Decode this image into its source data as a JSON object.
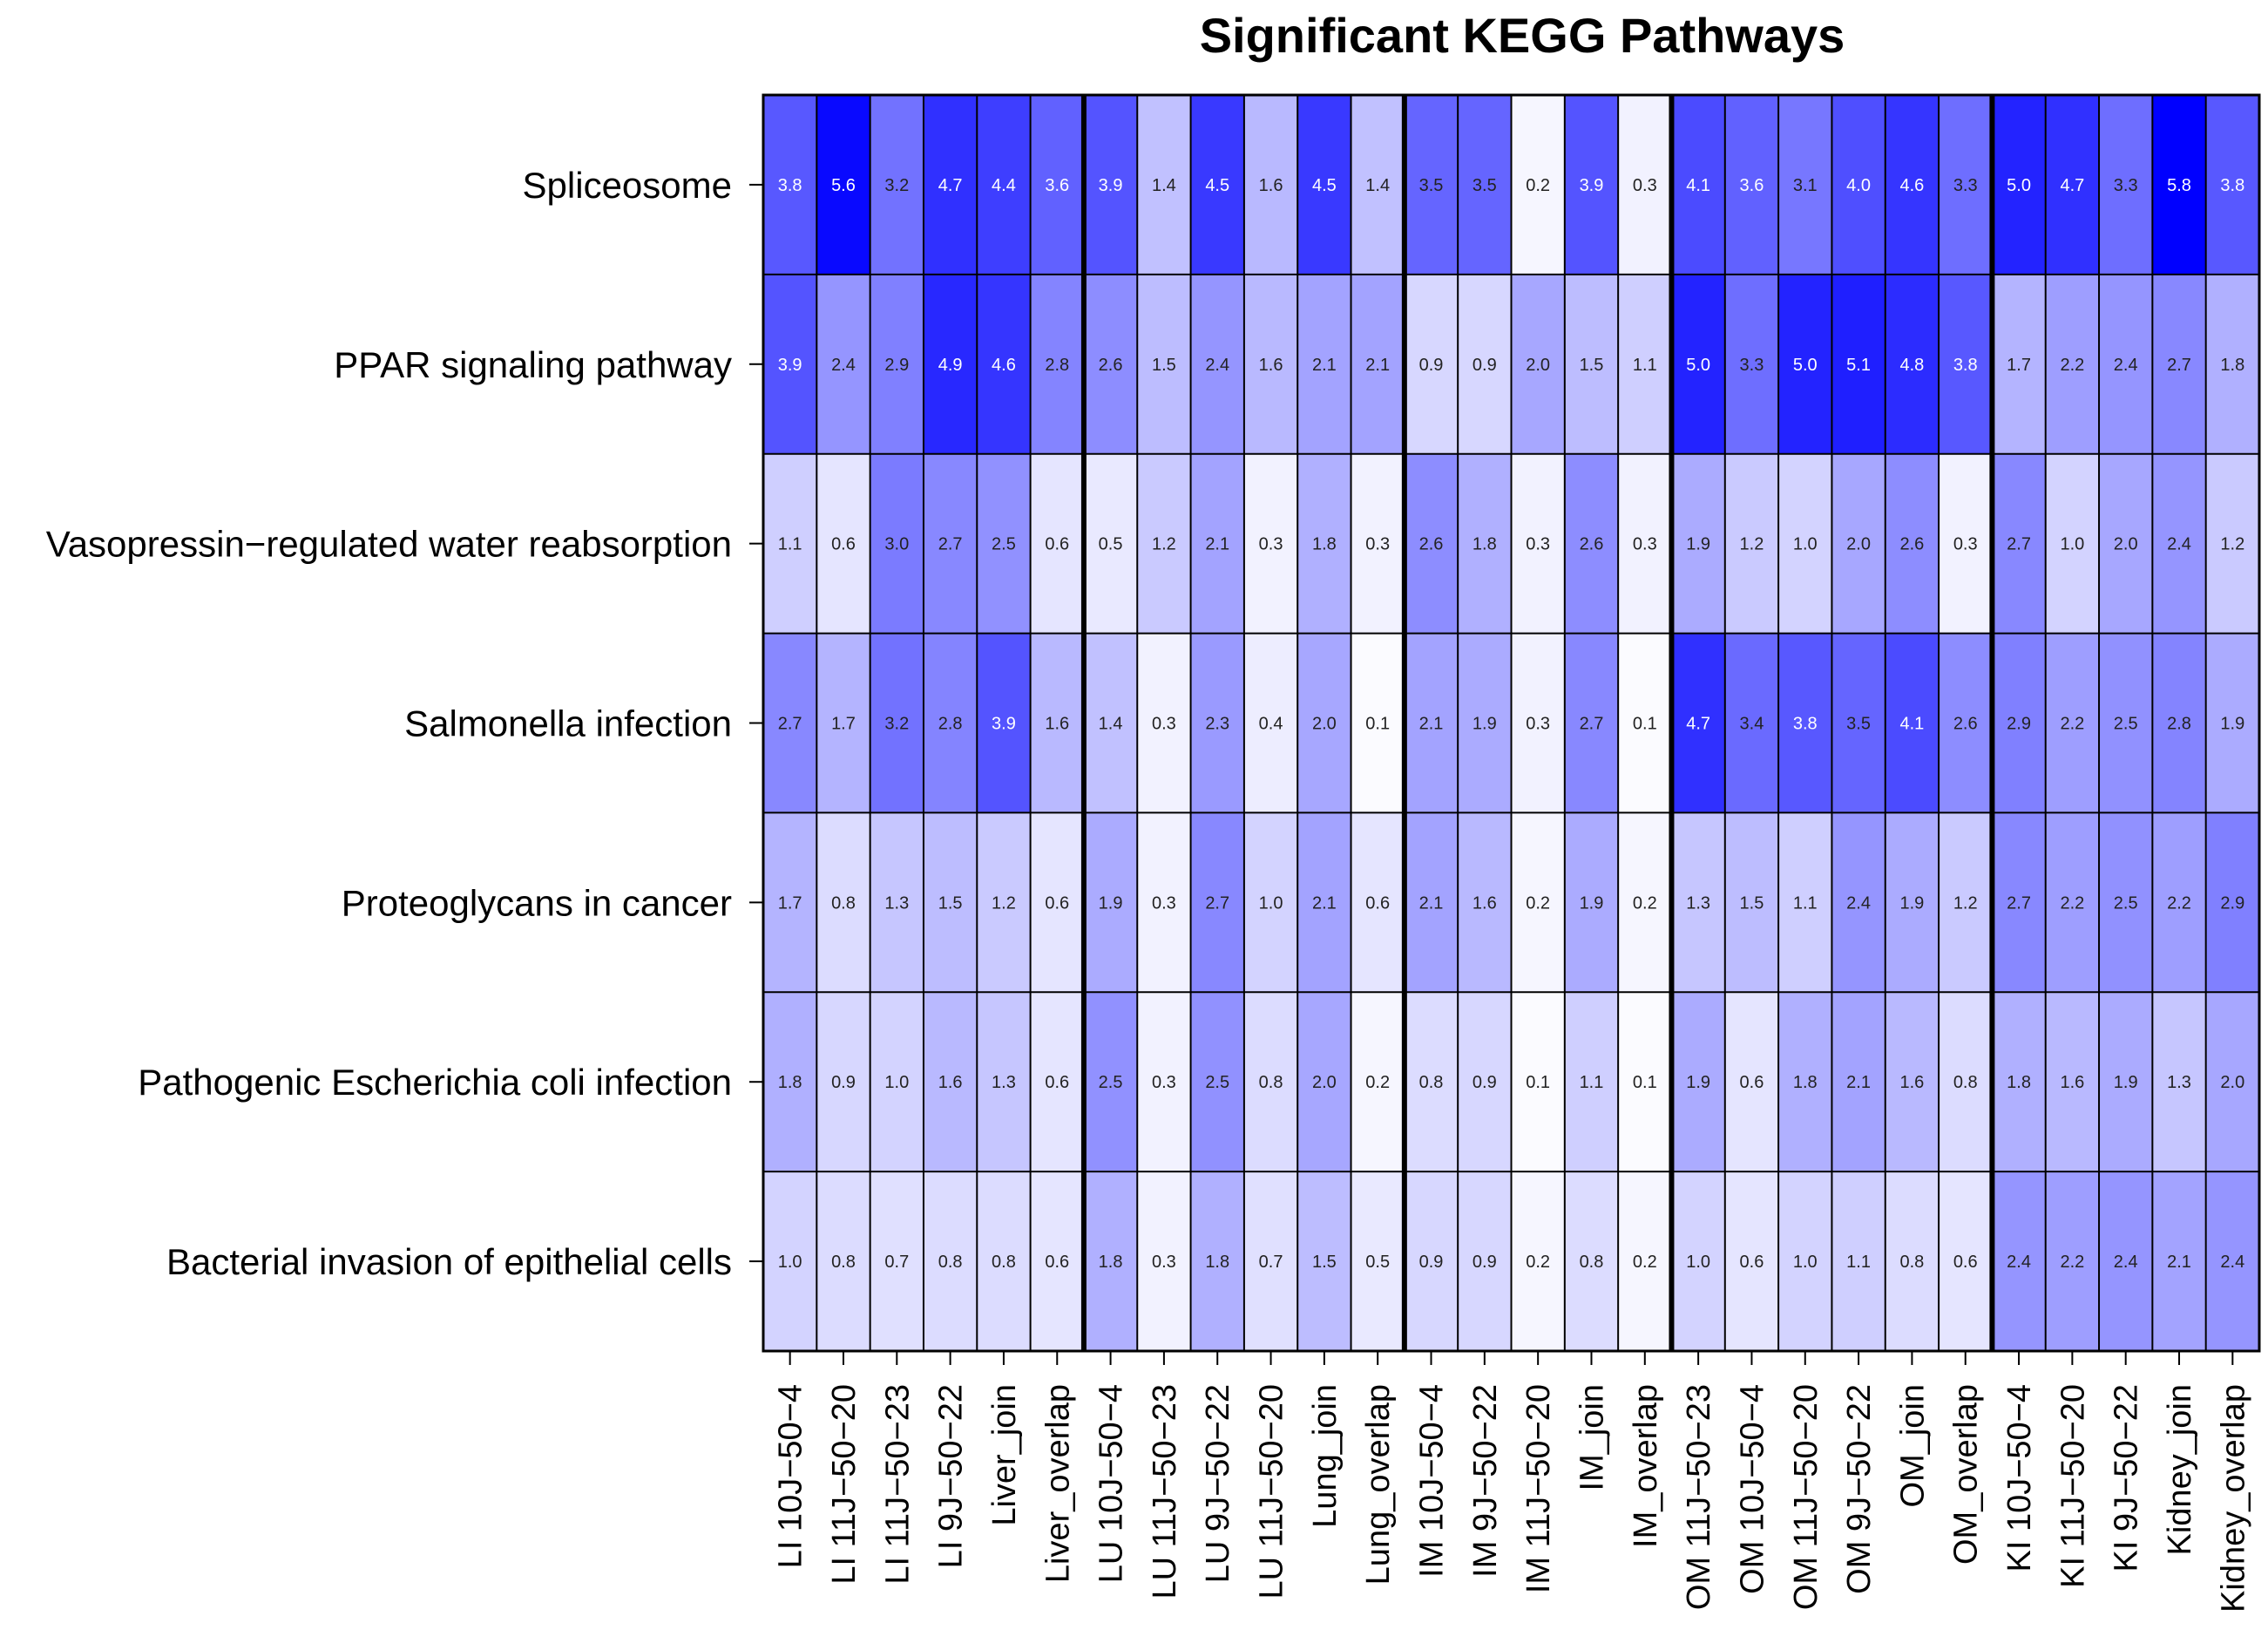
{
  "chart_data": {
    "type": "heatmap",
    "title": "Significant KEGG Pathways",
    "rows": [
      "Spliceosome",
      "PPAR signaling pathway",
      "Vasopressin−regulated water reabsorption",
      "Salmonella infection",
      "Proteoglycans in cancer",
      "Pathogenic Escherichia coli infection",
      "Bacterial invasion of epithelial cells"
    ],
    "columns": [
      "LI 10J−50−4",
      "LI 11J−50−20",
      "LI 11J−50−23",
      "LI 9J−50−22",
      "Liver_join",
      "Liver_overlap",
      "LU 10J−50−4",
      "LU 11J−50−23",
      "LU 9J−50−22",
      "LU 11J−50−20",
      "Lung_join",
      "Lung_overlap",
      "IM 10J−50−4",
      "IM 9J−50−22",
      "IM 11J−50−20",
      "IM_join",
      "IM_overlap",
      "OM 11J−50−23",
      "OM 10J−50−4",
      "OM 11J−50−20",
      "OM 9J−50−22",
      "OM_join",
      "OM_overlap",
      "KI 10J−50−4",
      "KI 11J−50−20",
      "KI 9J−50−22",
      "Kidney_join",
      "Kidney_overlap"
    ],
    "group_boundaries_after_column": [
      6,
      12,
      17,
      23
    ],
    "values": [
      [
        "3.8",
        "5.6",
        "3.2",
        "4.7",
        "4.4",
        "3.6",
        "3.9",
        "1.4",
        "4.5",
        "1.6",
        "4.5",
        "1.4",
        "3.5",
        "3.5",
        "0.2",
        "3.9",
        "0.3",
        "4.1",
        "3.6",
        "3.1",
        "4.0",
        "4.6",
        "3.3",
        "5.0",
        "4.7",
        "3.3",
        "5.8",
        "3.8"
      ],
      [
        "3.9",
        "2.4",
        "2.9",
        "4.9",
        "4.6",
        "2.8",
        "2.6",
        "1.5",
        "2.4",
        "1.6",
        "2.1",
        "2.1",
        "0.9",
        "0.9",
        "2.0",
        "1.5",
        "1.1",
        "5.0",
        "3.3",
        "5.0",
        "5.1",
        "4.8",
        "3.8",
        "1.7",
        "2.2",
        "2.4",
        "2.7",
        "1.8"
      ],
      [
        "1.1",
        "0.6",
        "3.0",
        "2.7",
        "2.5",
        "0.6",
        "0.5",
        "1.2",
        "2.1",
        "0.3",
        "1.8",
        "0.3",
        "2.6",
        "1.8",
        "0.3",
        "2.6",
        "0.3",
        "1.9",
        "1.2",
        "1.0",
        "2.0",
        "2.6",
        "0.3",
        "2.7",
        "1.0",
        "2.0",
        "2.4",
        "1.2"
      ],
      [
        "2.7",
        "1.7",
        "3.2",
        "2.8",
        "3.9",
        "1.6",
        "1.4",
        "0.3",
        "2.3",
        "0.4",
        "2.0",
        "0.1",
        "2.1",
        "1.9",
        "0.3",
        "2.7",
        "0.1",
        "4.7",
        "3.4",
        "3.8",
        "3.5",
        "4.1",
        "2.6",
        "2.9",
        "2.2",
        "2.5",
        "2.8",
        "1.9"
      ],
      [
        "1.7",
        "0.8",
        "1.3",
        "1.5",
        "1.2",
        "0.6",
        "1.9",
        "0.3",
        "2.7",
        "1.0",
        "2.1",
        "0.6",
        "2.1",
        "1.6",
        "0.2",
        "1.9",
        "0.2",
        "1.3",
        "1.5",
        "1.1",
        "2.4",
        "1.9",
        "1.2",
        "2.7",
        "2.2",
        "2.5",
        "2.2",
        "2.9"
      ],
      [
        "1.8",
        "0.9",
        "1.0",
        "1.6",
        "1.3",
        "0.6",
        "2.5",
        "0.3",
        "2.5",
        "0.8",
        "2.0",
        "0.2",
        "0.8",
        "0.9",
        "0.1",
        "1.1",
        "0.1",
        "1.9",
        "0.6",
        "1.8",
        "2.1",
        "1.6",
        "0.8",
        "1.8",
        "1.6",
        "1.9",
        "1.3",
        "2.0"
      ],
      [
        "1.0",
        "0.8",
        "0.7",
        "0.8",
        "0.8",
        "0.6",
        "1.8",
        "0.3",
        "1.8",
        "0.7",
        "1.5",
        "0.5",
        "0.9",
        "0.9",
        "0.2",
        "0.8",
        "0.2",
        "1.0",
        "0.6",
        "1.0",
        "1.1",
        "0.8",
        "0.6",
        "2.4",
        "2.2",
        "2.4",
        "2.1",
        "2.4"
      ]
    ],
    "color_scale": {
      "low": "#ffffff",
      "high": "#0000ff",
      "min": 0,
      "max": 5.8
    },
    "grid": true,
    "legend": "none"
  }
}
